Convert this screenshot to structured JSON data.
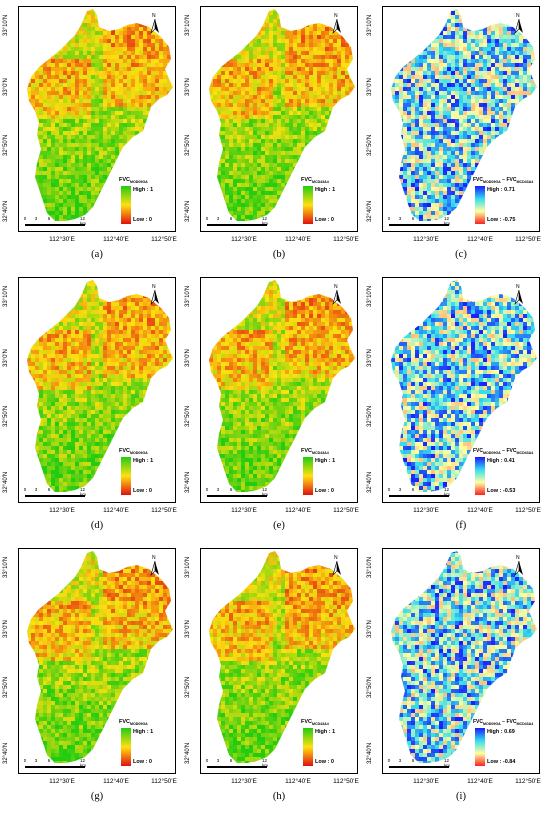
{
  "lat_ticks": [
    "33°10'N",
    "33°0'N",
    "32°50'N",
    "32°40'N"
  ],
  "lon_ticks": [
    "112°30'E",
    "112°40'E",
    "112°50'E"
  ],
  "scale_ticks": [
    "0",
    "3",
    "6",
    "12 km"
  ],
  "north_label": "N",
  "colors": {
    "fvc_high": "#22cc11",
    "fvc_mid": "#ffe010",
    "fvc_low": "#e01010",
    "diff_high": "#1a1aff",
    "diff_mid": "#33ddee",
    "diff_zero": "#ffffa0",
    "diff_low": "#ff2020"
  },
  "panels": [
    {
      "caption": "(a)",
      "kind": "fvc",
      "title_main": "FVC",
      "title_sub": "MOD09GA",
      "title_sub2": "",
      "high": "High : 1",
      "low": "Low : 0"
    },
    {
      "caption": "(b)",
      "kind": "fvc",
      "title_main": "FVC",
      "title_sub": "MCD43A4",
      "title_sub2": "",
      "high": "High : 1",
      "low": "Low : 0"
    },
    {
      "caption": "(c)",
      "kind": "diff",
      "title_main": "FVC",
      "title_sub": "MOD09GA",
      "title_sub2": "MCD43A4",
      "high": "High : 0.71",
      "low": "Low : -0.75"
    },
    {
      "caption": "(d)",
      "kind": "fvc",
      "title_main": "FVC",
      "title_sub": "MOD09GA",
      "title_sub2": "",
      "high": "High : 1",
      "low": "Low : 0"
    },
    {
      "caption": "(e)",
      "kind": "fvc",
      "title_main": "FVC",
      "title_sub": "MCD43A4",
      "title_sub2": "",
      "high": "High : 1",
      "low": "Low : 0"
    },
    {
      "caption": "(f)",
      "kind": "diff",
      "title_main": "FVC",
      "title_sub": "MOD09GA",
      "title_sub2": "MCD43A4",
      "high": "High : 0.41",
      "low": "Low : -0.53"
    },
    {
      "caption": "(g)",
      "kind": "fvc",
      "title_main": "FVC",
      "title_sub": "MOD09GA",
      "title_sub2": "",
      "high": "High : 1",
      "low": "Low : 0"
    },
    {
      "caption": "(h)",
      "kind": "fvc",
      "title_main": "FVC",
      "title_sub": "MCD43A4",
      "title_sub2": "",
      "high": "High : 1",
      "low": "Low : 0"
    },
    {
      "caption": "(i)",
      "kind": "diff",
      "title_main": "FVC",
      "title_sub": "MOD09GA",
      "title_sub2": "MCD43A4",
      "high": "High : 0.69",
      "low": "Low : -0.84"
    }
  ]
}
